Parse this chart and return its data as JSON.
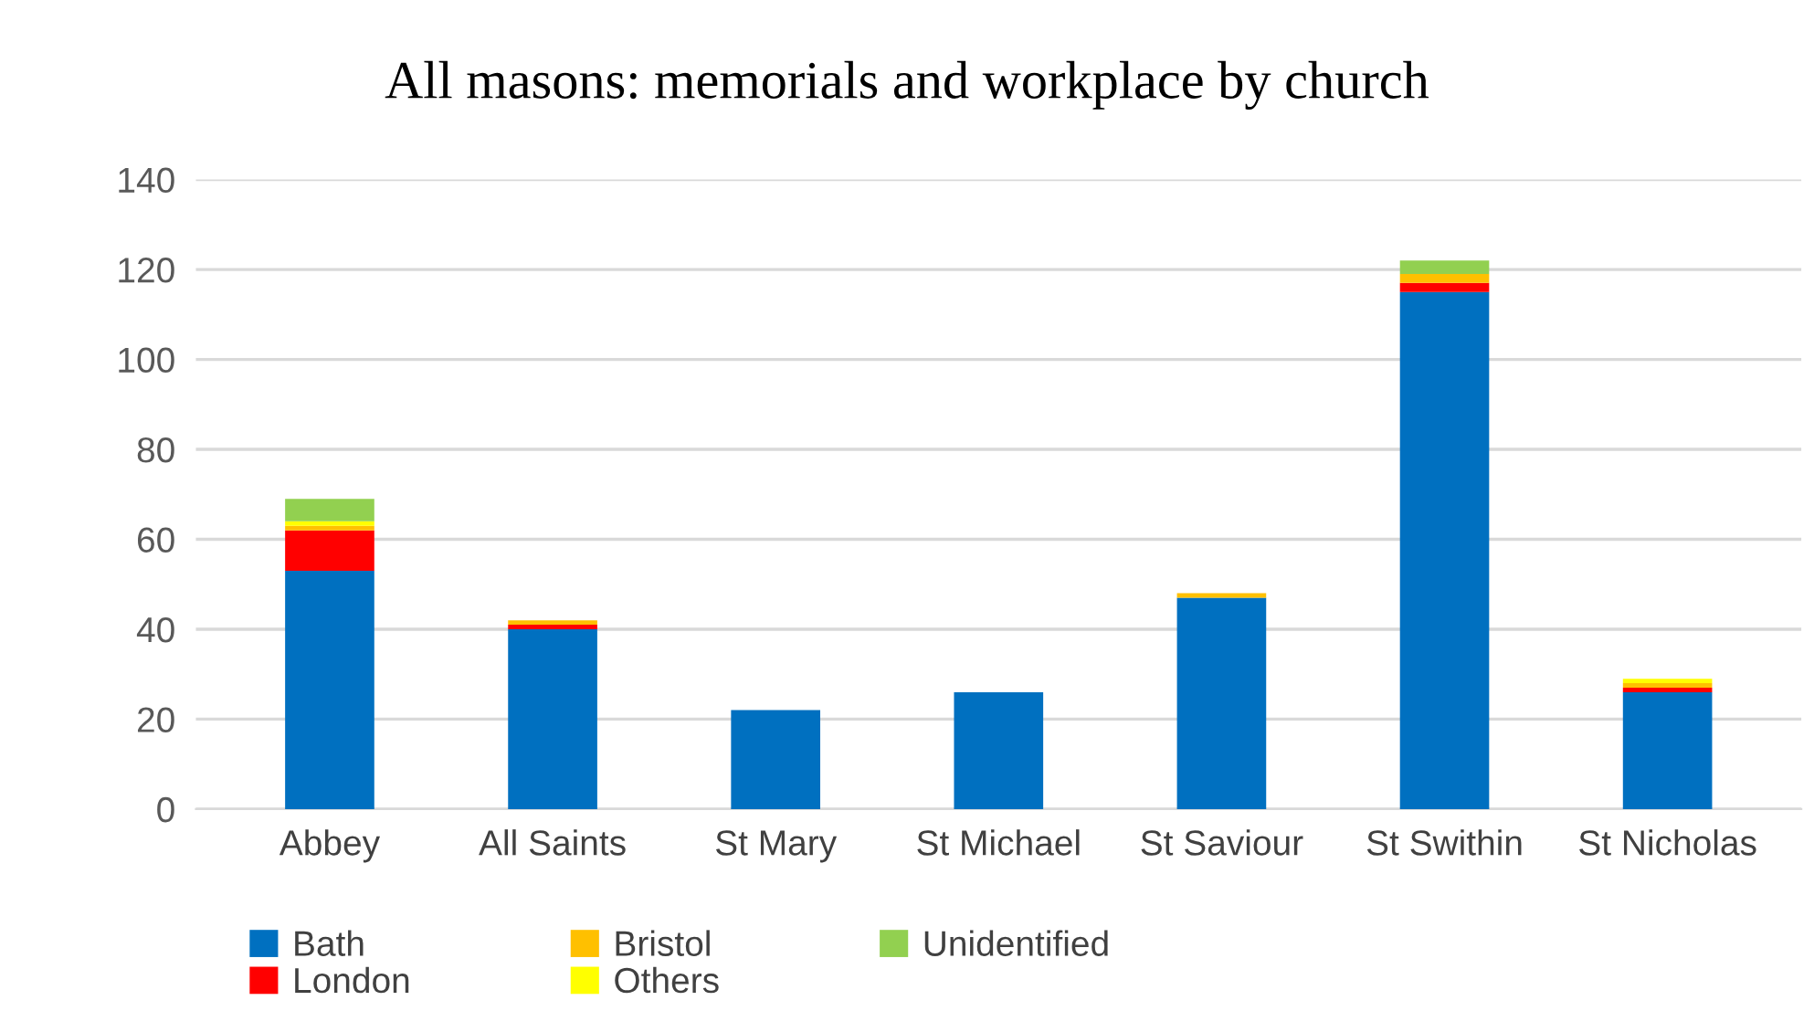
{
  "chart_data": {
    "type": "bar",
    "title": "All masons: memorials and workplace by church",
    "categories": [
      "Abbey",
      "All Saints",
      "St Mary",
      "St Michael",
      "St Saviour",
      "St Swithin",
      "St Nicholas"
    ],
    "stacked": true,
    "series": [
      {
        "name": "Bath",
        "color": "#0070c0",
        "values": [
          53,
          40,
          22,
          26,
          47,
          115,
          26
        ]
      },
      {
        "name": "London",
        "color": "#ff0000",
        "values": [
          9,
          1,
          0,
          0,
          0,
          2,
          1
        ]
      },
      {
        "name": "Bristol",
        "color": "#ffc000",
        "values": [
          1,
          1,
          0,
          0,
          1,
          2,
          1
        ]
      },
      {
        "name": "Others",
        "color": "#ffff00",
        "values": [
          1,
          0,
          0,
          0,
          0,
          0,
          1
        ]
      },
      {
        "name": "Unidentified",
        "color": "#92d050",
        "values": [
          5,
          0,
          0,
          0,
          0,
          3,
          0
        ]
      }
    ],
    "ylim": [
      0,
      140
    ],
    "yticks": [
      0,
      20,
      40,
      60,
      80,
      100,
      120,
      140
    ],
    "grid": "y",
    "legend": "bottom left"
  }
}
